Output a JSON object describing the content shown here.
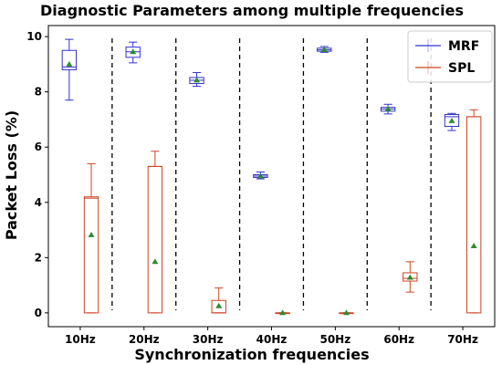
{
  "chart_data": {
    "type": "box",
    "title": "Diagnostic Parameters among multiple frequencies",
    "xlabel": "Synchronization frequencies",
    "ylabel": "Packet Loss (%)",
    "categories": [
      "10Hz",
      "20Hz",
      "30Hz",
      "40Hz",
      "50Hz",
      "60Hz",
      "70Hz"
    ],
    "ylim": [
      -0.5,
      10.4
    ],
    "yticks": [
      0,
      2,
      4,
      6,
      8,
      10
    ],
    "grid": false,
    "legend_position": "top-right",
    "separators": "dashed vertical lines between categories",
    "series": [
      {
        "name": "MRF",
        "color": "#3333cc",
        "boxes": [
          {
            "min": 7.7,
            "q1": 8.8,
            "median": 8.9,
            "q3": 9.5,
            "max": 9.9,
            "mean": 9.0
          },
          {
            "min": 9.05,
            "q1": 9.25,
            "median": 9.45,
            "q3": 9.62,
            "max": 9.8,
            "mean": 9.45
          },
          {
            "min": 8.2,
            "q1": 8.3,
            "median": 8.42,
            "q3": 8.52,
            "max": 8.7,
            "mean": 8.42
          },
          {
            "min": 4.85,
            "q1": 4.9,
            "median": 4.95,
            "q3": 5.0,
            "max": 5.1,
            "mean": 4.95
          },
          {
            "min": 9.43,
            "q1": 9.47,
            "median": 9.52,
            "q3": 9.58,
            "max": 9.64,
            "mean": 9.52
          },
          {
            "min": 7.2,
            "q1": 7.3,
            "median": 7.38,
            "q3": 7.44,
            "max": 7.55,
            "mean": 7.38
          },
          {
            "min": 6.6,
            "q1": 6.75,
            "median": 7.1,
            "q3": 7.18,
            "max": 7.22,
            "mean": 6.95
          }
        ]
      },
      {
        "name": "SPL",
        "color": "#cc4422",
        "boxes": [
          {
            "min": 0,
            "q1": 0,
            "median": 4.15,
            "q3": 4.2,
            "max": 5.4,
            "mean": 2.82
          },
          {
            "min": 0,
            "q1": 0,
            "median": 5.3,
            "q3": 5.3,
            "max": 5.85,
            "mean": 1.85
          },
          {
            "min": 0,
            "q1": 0,
            "median": 0,
            "q3": 0.45,
            "max": 0.9,
            "mean": 0.25
          },
          {
            "min": 0,
            "q1": 0,
            "median": 0,
            "q3": 0,
            "max": 0,
            "mean": 0
          },
          {
            "min": 0,
            "q1": 0,
            "median": 0,
            "q3": 0,
            "max": 0,
            "mean": 0
          },
          {
            "min": 0.75,
            "q1": 1.15,
            "median": 1.25,
            "q3": 1.45,
            "max": 1.85,
            "mean": 1.28
          },
          {
            "min": 0,
            "q1": 0,
            "median": 7.1,
            "q3": 7.1,
            "max": 7.35,
            "mean": 2.42
          }
        ]
      }
    ],
    "mean_marker_color": "#2e8b2e"
  }
}
